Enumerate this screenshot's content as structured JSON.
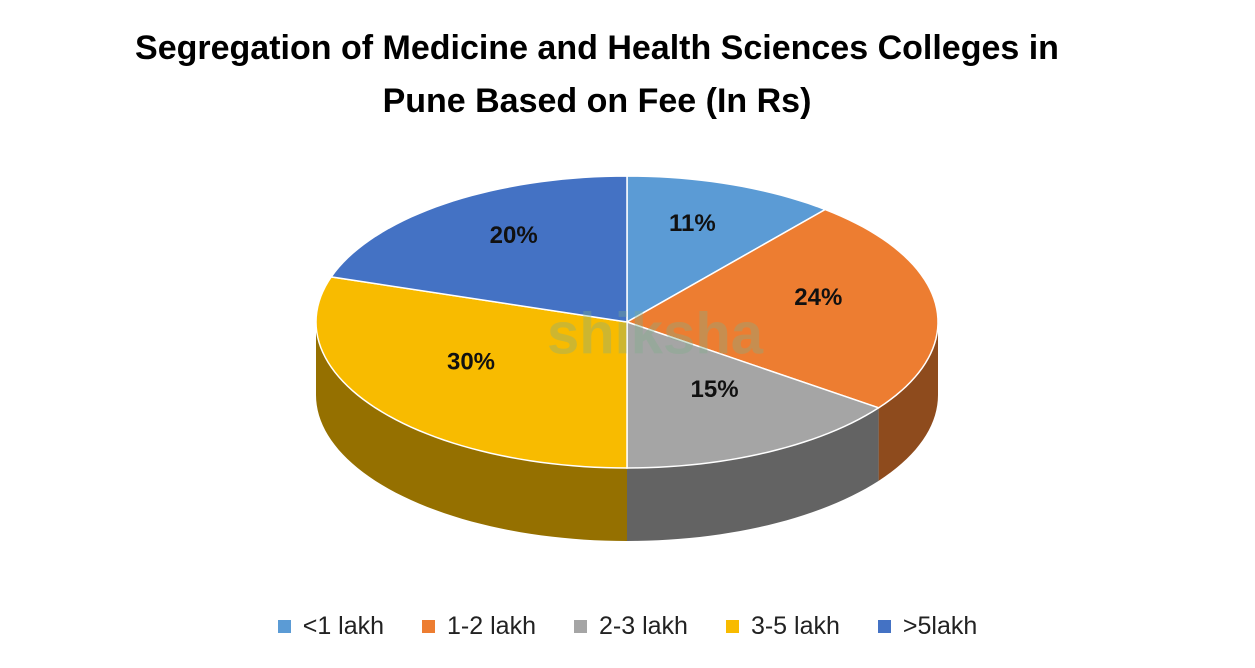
{
  "chart_data": {
    "type": "pie",
    "title": "Segregation of Medicine and Health Sciences Colleges in Pune Based on Fee (In Rs)",
    "categories": [
      "<1 lakh",
      "1-2 lakh",
      "2-3 lakh",
      "3-5 lakh",
      ">5lakh"
    ],
    "values": [
      11,
      24,
      15,
      30,
      20
    ],
    "value_labels": [
      "11%",
      "24%",
      "15%",
      "30%",
      "20%"
    ],
    "colors": [
      "#5b9bd5",
      "#ed7d31",
      "#a5a5a5",
      "#f8bb00",
      "#4472c4"
    ],
    "watermark": "shiksha"
  }
}
